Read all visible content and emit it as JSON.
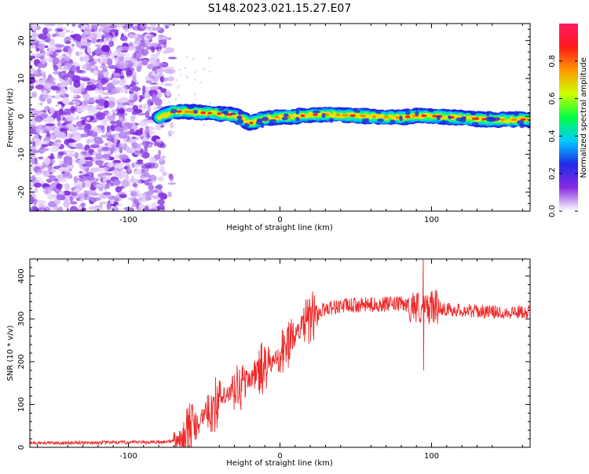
{
  "title": "S148.2023.021.15.27.E07",
  "chart_data": [
    {
      "type": "heatmap",
      "xlabel": "Height of straight line (km)",
      "ylabel": "Frequency (Hz)",
      "xlim": [
        -165,
        165
      ],
      "ylim": [
        -25,
        24.5
      ],
      "xticks": [
        -100,
        0,
        100
      ],
      "yticks": [
        -20,
        -10,
        0,
        10,
        20
      ],
      "colorbar": {
        "label": "Normalized spectral amplitude",
        "range": [
          0,
          1
        ],
        "ticks": [
          "0.0",
          "0.2",
          "0.4",
          "0.6",
          "0.8"
        ],
        "ticks_values": [
          0.0,
          0.2,
          0.4,
          0.6,
          0.8
        ],
        "colors": [
          "#ffffff",
          "#8a2be2",
          "#1f2be6",
          "#00ccff",
          "#00ff44",
          "#ccff00",
          "#ff9900",
          "#ff1a1a",
          "#ff1a66"
        ]
      },
      "noise_region_x": [
        -165,
        -77
      ],
      "signal_line": {
        "x": [
          -80,
          -70,
          -60,
          -50,
          -40,
          -30,
          -25,
          -20,
          -15,
          -10,
          0,
          10,
          20,
          30,
          40,
          50,
          60,
          70,
          80,
          90,
          100,
          110,
          120,
          130,
          140,
          150,
          165
        ],
        "y": [
          -0.3,
          1.3,
          1.2,
          0.9,
          0.7,
          0.3,
          -0.6,
          -1.8,
          -1.2,
          -0.5,
          -0.2,
          0.0,
          0.4,
          0.5,
          0.3,
          0.2,
          0.0,
          -0.2,
          -0.3,
          0.2,
          0.1,
          -0.2,
          -0.4,
          -0.7,
          -0.8,
          -0.9,
          -0.8
        ]
      }
    },
    {
      "type": "line",
      "xlabel": "Height of straight line (km)",
      "ylabel": "SNR (10 * v/v)",
      "xlim": [
        -165,
        165
      ],
      "ylim": [
        0,
        440
      ],
      "xticks": [
        -100,
        0,
        100
      ],
      "yticks": [
        0,
        100,
        200,
        300,
        400
      ],
      "series_color": "#ee2a2a",
      "envelope": {
        "x": [
          -165,
          -80,
          -70,
          -65,
          -60,
          -50,
          -40,
          -30,
          -20,
          -10,
          0,
          10,
          20,
          30,
          40,
          60,
          80,
          90,
          95,
          100,
          110,
          130,
          150,
          165
        ],
        "y": [
          10,
          12,
          15,
          20,
          40,
          75,
          110,
          130,
          160,
          185,
          215,
          265,
          300,
          325,
          330,
          333,
          335,
          330,
          320,
          330,
          322,
          318,
          315,
          318
        ]
      },
      "features": [
        {
          "x": 94.5,
          "value": 440,
          "label": "max spike"
        },
        {
          "x": 94.7,
          "value": 180,
          "label": "min spike"
        }
      ]
    }
  ]
}
